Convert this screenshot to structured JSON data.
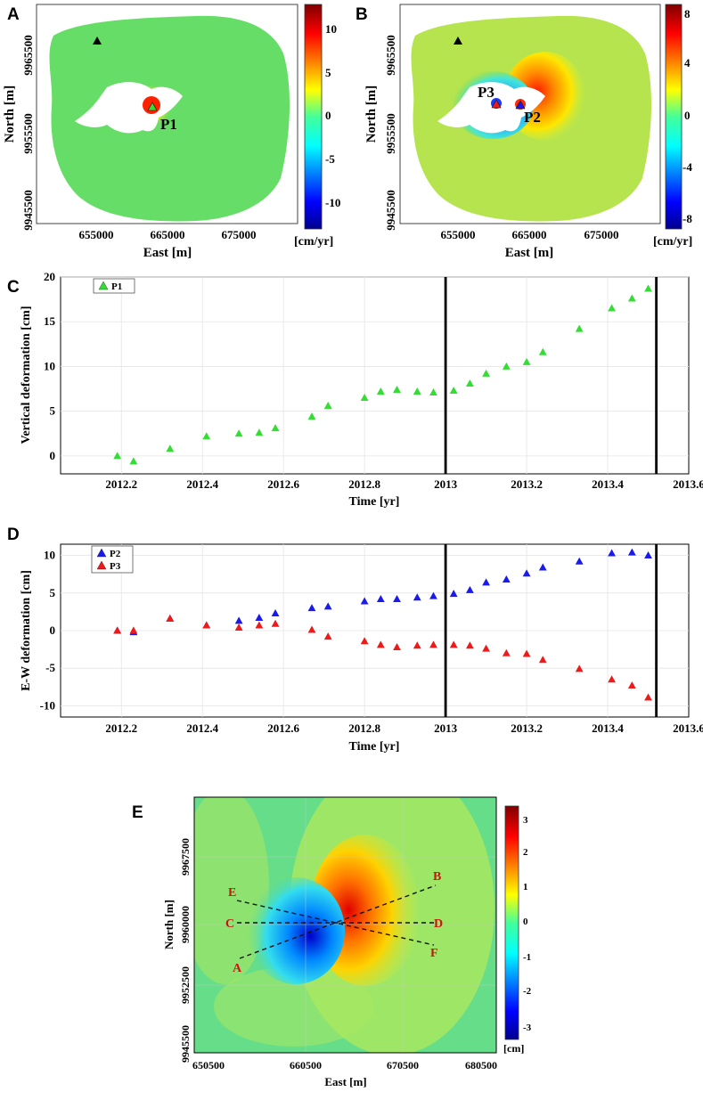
{
  "colors": {
    "series_p1": "#33dd33",
    "series_p2": "#1a1aee",
    "series_p3": "#ee1a1a",
    "map_bg": "#66dd66",
    "mask": "#ffffff"
  },
  "panel_labels": {
    "a": "A",
    "b": "B",
    "c": "C",
    "d": "D",
    "e": "E"
  },
  "map_a": {
    "xlabel": "East [m]",
    "ylabel": "North [m]",
    "xticks": [
      "655000",
      "665000",
      "675000"
    ],
    "yticks": [
      "9965500",
      "9955500",
      "9945500"
    ],
    "point_label": "P1",
    "colorbar_ticks": [
      "10",
      "5",
      "0",
      "-5",
      "-10"
    ],
    "colorbar_unit": "[cm/yr]"
  },
  "map_b": {
    "xlabel": "East [m]",
    "ylabel": "North [m]",
    "xticks": [
      "655000",
      "665000",
      "675000"
    ],
    "yticks": [
      "9965500",
      "9955500",
      "9945500"
    ],
    "point_labels": [
      "P3",
      "P2"
    ],
    "colorbar_ticks": [
      "8",
      "4",
      "0",
      "-4",
      "-8"
    ],
    "colorbar_unit": "[cm/yr]"
  },
  "map_e": {
    "xlabel": "East [m]",
    "ylabel": "North [m]",
    "xticks": [
      "650500",
      "660500",
      "670500",
      "680500"
    ],
    "yticks": [
      "9967500",
      "9960000",
      "9952500",
      "9945500"
    ],
    "profile_labels": [
      "A",
      "B",
      "C",
      "D",
      "E",
      "F"
    ],
    "colorbar_ticks": [
      "3",
      "2",
      "1",
      "0",
      "-1",
      "-2",
      "-3"
    ],
    "colorbar_unit": "[cm]"
  },
  "chart_data": [
    {
      "type": "scatter",
      "title": "",
      "xlabel": "Time [yr]",
      "ylabel": "Vertical deformation [cm]",
      "xlim": [
        2012.05,
        2013.6
      ],
      "ylim": [
        -2,
        20
      ],
      "xticks": [
        "2012.2",
        "2012.4",
        "2012.6",
        "2012.8",
        "2013",
        "2013.2",
        "2013.4",
        "2013.6"
      ],
      "yticks": [
        "0",
        "5",
        "10",
        "15",
        "20"
      ],
      "vlines": [
        2013.0,
        2013.52
      ],
      "series": [
        {
          "name": "P1",
          "x": [
            2012.19,
            2012.23,
            2012.32,
            2012.41,
            2012.49,
            2012.54,
            2012.58,
            2012.67,
            2012.71,
            2012.8,
            2012.84,
            2012.88,
            2012.93,
            2012.97,
            2013.02,
            2013.06,
            2013.1,
            2013.15,
            2013.2,
            2013.24,
            2013.33,
            2013.41,
            2013.46,
            2013.5
          ],
          "y": [
            0.0,
            -0.6,
            0.8,
            2.2,
            2.5,
            2.6,
            3.1,
            4.4,
            5.6,
            6.5,
            7.2,
            7.4,
            7.2,
            7.1,
            7.3,
            8.1,
            9.2,
            10.0,
            10.5,
            11.6,
            14.2,
            16.5,
            17.6,
            18.7
          ]
        }
      ]
    },
    {
      "type": "scatter",
      "title": "",
      "xlabel": "Time [yr]",
      "ylabel": "E-W deformation [cm]",
      "xlim": [
        2012.05,
        2013.6
      ],
      "ylim": [
        -11.5,
        11.5
      ],
      "xticks": [
        "2012.2",
        "2012.4",
        "2012.6",
        "2012.8",
        "2013",
        "2013.2",
        "2013.4",
        "2013.6"
      ],
      "yticks": [
        "10",
        "5",
        "0",
        "-5",
        "-10"
      ],
      "vlines": [
        2013.0,
        2013.52
      ],
      "series": [
        {
          "name": "P2",
          "x": [
            2012.19,
            2012.23,
            2012.32,
            2012.41,
            2012.49,
            2012.54,
            2012.58,
            2012.67,
            2012.71,
            2012.8,
            2012.84,
            2012.88,
            2012.93,
            2012.97,
            2013.02,
            2013.06,
            2013.1,
            2013.15,
            2013.2,
            2013.24,
            2013.33,
            2013.41,
            2013.46,
            2013.5
          ],
          "y": [
            0.0,
            -0.2,
            1.6,
            0.7,
            1.3,
            1.7,
            2.3,
            3.0,
            3.2,
            3.9,
            4.2,
            4.2,
            4.4,
            4.6,
            4.9,
            5.4,
            6.4,
            6.8,
            7.6,
            8.4,
            9.2,
            10.3,
            10.4,
            10.0
          ]
        },
        {
          "name": "P3",
          "x": [
            2012.19,
            2012.23,
            2012.32,
            2012.41,
            2012.49,
            2012.54,
            2012.58,
            2012.67,
            2012.71,
            2012.8,
            2012.84,
            2012.88,
            2012.93,
            2012.97,
            2013.02,
            2013.06,
            2013.1,
            2013.15,
            2013.2,
            2013.24,
            2013.33,
            2013.41,
            2013.46,
            2013.5
          ],
          "y": [
            0.0,
            0.0,
            1.6,
            0.7,
            0.4,
            0.7,
            0.9,
            0.1,
            -0.8,
            -1.4,
            -1.9,
            -2.2,
            -2.0,
            -1.9,
            -1.9,
            -2.0,
            -2.4,
            -3.0,
            -3.1,
            -3.9,
            -5.1,
            -6.5,
            -7.3,
            -8.9
          ]
        }
      ]
    }
  ]
}
